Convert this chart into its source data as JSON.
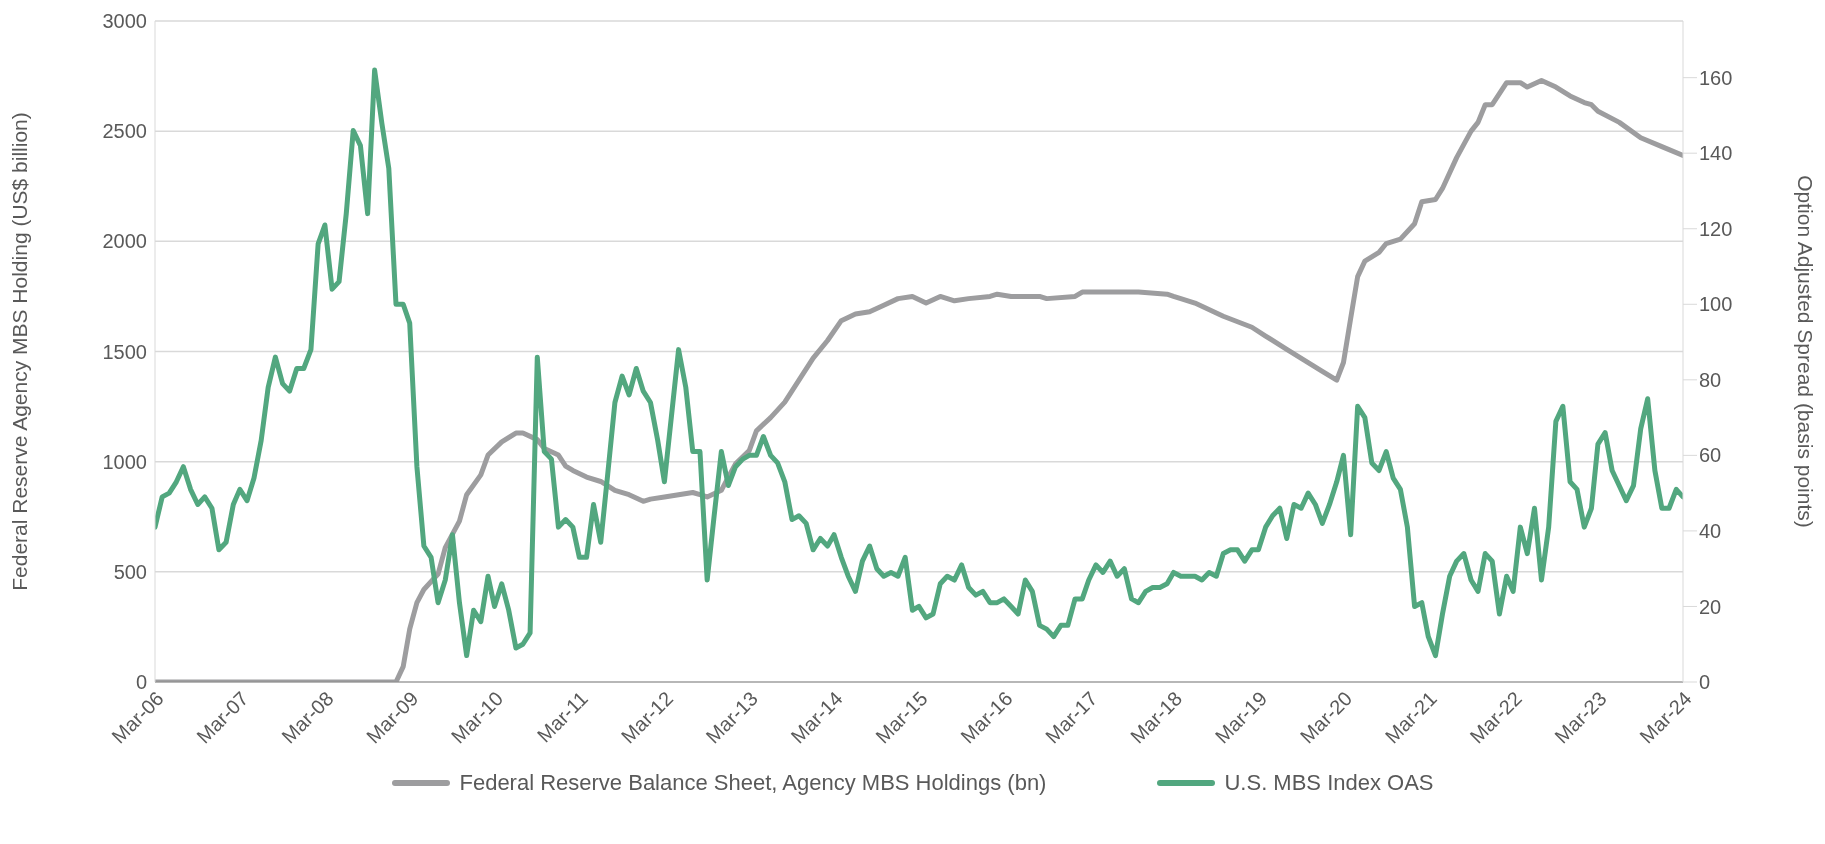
{
  "chart_data": {
    "type": "line",
    "ylabel": "Federal Reserve Agency MBS Holding (US$ billion)",
    "y2label": "Option Adjusted Spread (basis points)",
    "xlim": [
      "2006-03",
      "2024-03"
    ],
    "xticks": [
      {
        "value": "2006-03",
        "label": "Mar-06"
      },
      {
        "value": "2007-03",
        "label": "Mar-07"
      },
      {
        "value": "2008-03",
        "label": "Mar-08"
      },
      {
        "value": "2009-03",
        "label": "Mar-09"
      },
      {
        "value": "2010-03",
        "label": "Mar-10"
      },
      {
        "value": "2011-03",
        "label": "Mar-11"
      },
      {
        "value": "2012-03",
        "label": "Mar-12"
      },
      {
        "value": "2013-03",
        "label": "Mar-13"
      },
      {
        "value": "2014-03",
        "label": "Mar-14"
      },
      {
        "value": "2015-03",
        "label": "Mar-15"
      },
      {
        "value": "2016-03",
        "label": "Mar-16"
      },
      {
        "value": "2017-03",
        "label": "Mar-17"
      },
      {
        "value": "2018-03",
        "label": "Mar-18"
      },
      {
        "value": "2019-03",
        "label": "Mar-19"
      },
      {
        "value": "2020-03",
        "label": "Mar-20"
      },
      {
        "value": "2021-03",
        "label": "Mar-21"
      },
      {
        "value": "2022-03",
        "label": "Mar-22"
      },
      {
        "value": "2023-03",
        "label": "Mar-23"
      },
      {
        "value": "2024-03",
        "label": "Mar-24"
      }
    ],
    "ylim": [
      0,
      3000
    ],
    "yticks": [
      0,
      500,
      1000,
      1500,
      2000,
      2500,
      3000
    ],
    "y2lim": [
      0,
      175
    ],
    "y2ticks": [
      0,
      20,
      40,
      60,
      80,
      100,
      120,
      140,
      160
    ],
    "grid": "y",
    "legend": "bottom",
    "marker": "none",
    "line_style": "solid",
    "series": [
      {
        "name": "Federal Reserve Balance Sheet, Agency MBS Holdings (bn)",
        "color": "#9d9d9f",
        "x": [
          "2006-03",
          "2009-01",
          "2009-02",
          "2009-03",
          "2009-04",
          "2009-05",
          "2009-07",
          "2009-08",
          "2009-10",
          "2009-11",
          "2010-01",
          "2010-02",
          "2010-04",
          "2010-06",
          "2010-07",
          "2010-09",
          "2010-10",
          "2010-12",
          "2011-01",
          "2011-02",
          "2011-04",
          "2011-06",
          "2011-08",
          "2011-10",
          "2011-12",
          "2012-01",
          "2012-03",
          "2012-05",
          "2012-07",
          "2012-08",
          "2012-09",
          "2012-11",
          "2012-12",
          "2013-01",
          "2013-03",
          "2013-04",
          "2013-06",
          "2013-08",
          "2013-10",
          "2013-12",
          "2014-02",
          "2014-04",
          "2014-06",
          "2014-08",
          "2014-10",
          "2014-12",
          "2015-02",
          "2015-04",
          "2015-06",
          "2015-08",
          "2015-10",
          "2016-01",
          "2016-02",
          "2016-04",
          "2016-08",
          "2016-09",
          "2017-01",
          "2017-02",
          "2017-06",
          "2017-10",
          "2018-02",
          "2018-03",
          "2018-04",
          "2018-06",
          "2018-10",
          "2019-02",
          "2019-04",
          "2019-07",
          "2019-10",
          "2019-12",
          "2020-02",
          "2020-03",
          "2020-04",
          "2020-05",
          "2020-06",
          "2020-08",
          "2020-09",
          "2020-11",
          "2021-01",
          "2021-02",
          "2021-04",
          "2021-05",
          "2021-07",
          "2021-09",
          "2021-10",
          "2021-11",
          "2021-12",
          "2022-01",
          "2022-02",
          "2022-04",
          "2022-05",
          "2022-07",
          "2022-09",
          "2022-11",
          "2023-01",
          "2023-02",
          "2023-03",
          "2023-06",
          "2023-09",
          "2023-12",
          "2024-03"
        ],
        "values": [
          0,
          0,
          70,
          240,
          360,
          420,
          490,
          610,
          730,
          850,
          940,
          1030,
          1090,
          1130,
          1130,
          1100,
          1060,
          1030,
          980,
          960,
          930,
          910,
          870,
          850,
          820,
          830,
          840,
          850,
          860,
          850,
          840,
          870,
          930,
          990,
          1050,
          1140,
          1200,
          1270,
          1370,
          1470,
          1550,
          1640,
          1670,
          1680,
          1710,
          1740,
          1750,
          1720,
          1750,
          1730,
          1740,
          1750,
          1760,
          1750,
          1750,
          1740,
          1750,
          1770,
          1770,
          1770,
          1760,
          1750,
          1740,
          1720,
          1660,
          1610,
          1570,
          1510,
          1450,
          1410,
          1370,
          1450,
          1650,
          1840,
          1910,
          1950,
          1990,
          2010,
          2080,
          2180,
          2190,
          2240,
          2380,
          2500,
          2540,
          2620,
          2620,
          2670,
          2720,
          2720,
          2700,
          2730,
          2700,
          2660,
          2630,
          2620,
          2590,
          2540,
          2470,
          2430,
          2390
        ]
      },
      {
        "name": "U.S. MBS Index OAS",
        "color": "#52a77f",
        "axis": "y2",
        "x": [
          "2006-03",
          "2006-04",
          "2006-05",
          "2006-06",
          "2006-07",
          "2006-08",
          "2006-09",
          "2006-10",
          "2006-11",
          "2006-12",
          "2007-01",
          "2007-02",
          "2007-03",
          "2007-04",
          "2007-05",
          "2007-06",
          "2007-07",
          "2007-08",
          "2007-09",
          "2007-10",
          "2007-11",
          "2007-12",
          "2008-01",
          "2008-02",
          "2008-03",
          "2008-04",
          "2008-05",
          "2008-06",
          "2008-07",
          "2008-08",
          "2008-09",
          "2008-10",
          "2008-11",
          "2008-12",
          "2009-01",
          "2009-02",
          "2009-03",
          "2009-04",
          "2009-05",
          "2009-06",
          "2009-07",
          "2009-08",
          "2009-09",
          "2009-10",
          "2009-11",
          "2009-12",
          "2010-01",
          "2010-02",
          "2010-03",
          "2010-04",
          "2010-05",
          "2010-06",
          "2010-07",
          "2010-08",
          "2010-09",
          "2010-10",
          "2010-11",
          "2010-12",
          "2011-01",
          "2011-02",
          "2011-03",
          "2011-04",
          "2011-05",
          "2011-06",
          "2011-07",
          "2011-08",
          "2011-09",
          "2011-10",
          "2011-11",
          "2011-12",
          "2012-01",
          "2012-02",
          "2012-03",
          "2012-05",
          "2012-06",
          "2012-07",
          "2012-08",
          "2012-09",
          "2012-10",
          "2012-11",
          "2012-12",
          "2013-01",
          "2013-02",
          "2013-03",
          "2013-04",
          "2013-05",
          "2013-06",
          "2013-07",
          "2013-08",
          "2013-09",
          "2013-10",
          "2013-11",
          "2013-12",
          "2014-01",
          "2014-02",
          "2014-03",
          "2014-04",
          "2014-05",
          "2014-06",
          "2014-07",
          "2014-08",
          "2014-09",
          "2014-10",
          "2014-11",
          "2014-12",
          "2015-01",
          "2015-02",
          "2015-03",
          "2015-04",
          "2015-05",
          "2015-06",
          "2015-07",
          "2015-08",
          "2015-09",
          "2015-10",
          "2015-11",
          "2015-12",
          "2016-01",
          "2016-02",
          "2016-03",
          "2016-04",
          "2016-05",
          "2016-06",
          "2016-07",
          "2016-08",
          "2016-09",
          "2016-10",
          "2016-11",
          "2016-12",
          "2017-01",
          "2017-02",
          "2017-03",
          "2017-04",
          "2017-05",
          "2017-06",
          "2017-07",
          "2017-08",
          "2017-09",
          "2017-10",
          "2017-11",
          "2017-12",
          "2018-01",
          "2018-02",
          "2018-03",
          "2018-04",
          "2018-05",
          "2018-06",
          "2018-07",
          "2018-08",
          "2018-09",
          "2018-10",
          "2018-11",
          "2018-12",
          "2019-01",
          "2019-02",
          "2019-03",
          "2019-04",
          "2019-05",
          "2019-06",
          "2019-07",
          "2019-08",
          "2019-09",
          "2019-10",
          "2019-11",
          "2019-12",
          "2020-01",
          "2020-02",
          "2020-03",
          "2020-04",
          "2020-05",
          "2020-06",
          "2020-07",
          "2020-08",
          "2020-09",
          "2020-10",
          "2020-11",
          "2020-12",
          "2021-01",
          "2021-02",
          "2021-03",
          "2021-04",
          "2021-05",
          "2021-06",
          "2021-07",
          "2021-08",
          "2021-09",
          "2021-10",
          "2021-11",
          "2021-12",
          "2022-01",
          "2022-02",
          "2022-03",
          "2022-04",
          "2022-05",
          "2022-06",
          "2022-07",
          "2022-08",
          "2022-09",
          "2022-10",
          "2022-11",
          "2022-12",
          "2023-01",
          "2023-02",
          "2023-03",
          "2023-04",
          "2023-05",
          "2023-07",
          "2023-08",
          "2023-09",
          "2023-10",
          "2023-11",
          "2023-12",
          "2024-01",
          "2024-02",
          "2024-03"
        ],
        "values": [
          41,
          49,
          50,
          53,
          57,
          51,
          47,
          49,
          46,
          35,
          37,
          47,
          51,
          48,
          54,
          64,
          78,
          86,
          79,
          77,
          83,
          83,
          88,
          116,
          121,
          104,
          106,
          124,
          146,
          142,
          124,
          162,
          148,
          136,
          100,
          100,
          95,
          57,
          36,
          33,
          21,
          27,
          39,
          21,
          7,
          19,
          16,
          28,
          20,
          26,
          19,
          9,
          10,
          13,
          86,
          61,
          59,
          41,
          43,
          41,
          33,
          33,
          47,
          37,
          55,
          74,
          81,
          76,
          83,
          77,
          74,
          64,
          53,
          88,
          78,
          61,
          61,
          27,
          44,
          61,
          52,
          57,
          59,
          60,
          60,
          65,
          60,
          58,
          53,
          43,
          44,
          42,
          35,
          38,
          36,
          39,
          33,
          28,
          24,
          32,
          36,
          30,
          28,
          29,
          28,
          33,
          19,
          20,
          17,
          18,
          26,
          28,
          27,
          31,
          25,
          23,
          24,
          21,
          21,
          22,
          20,
          18,
          27,
          24,
          15,
          14,
          12,
          15,
          15,
          22,
          22,
          27,
          31,
          29,
          32,
          28,
          30,
          22,
          21,
          24,
          25,
          25,
          26,
          29,
          28,
          28,
          28,
          27,
          29,
          28,
          34,
          35,
          35,
          32,
          35,
          35,
          41,
          44,
          46,
          38,
          47,
          46,
          50,
          47,
          42,
          47,
          53,
          60,
          39,
          73,
          70,
          58,
          56,
          61,
          54,
          51,
          41,
          20,
          21,
          12,
          7,
          18,
          28,
          32,
          34,
          27,
          24,
          34,
          32,
          18,
          28,
          24,
          41,
          34,
          46,
          27,
          41,
          69,
          73,
          53,
          51,
          41,
          46,
          63,
          66,
          56,
          48,
          52,
          67,
          75,
          56,
          46,
          46,
          51,
          49
        ]
      }
    ]
  }
}
